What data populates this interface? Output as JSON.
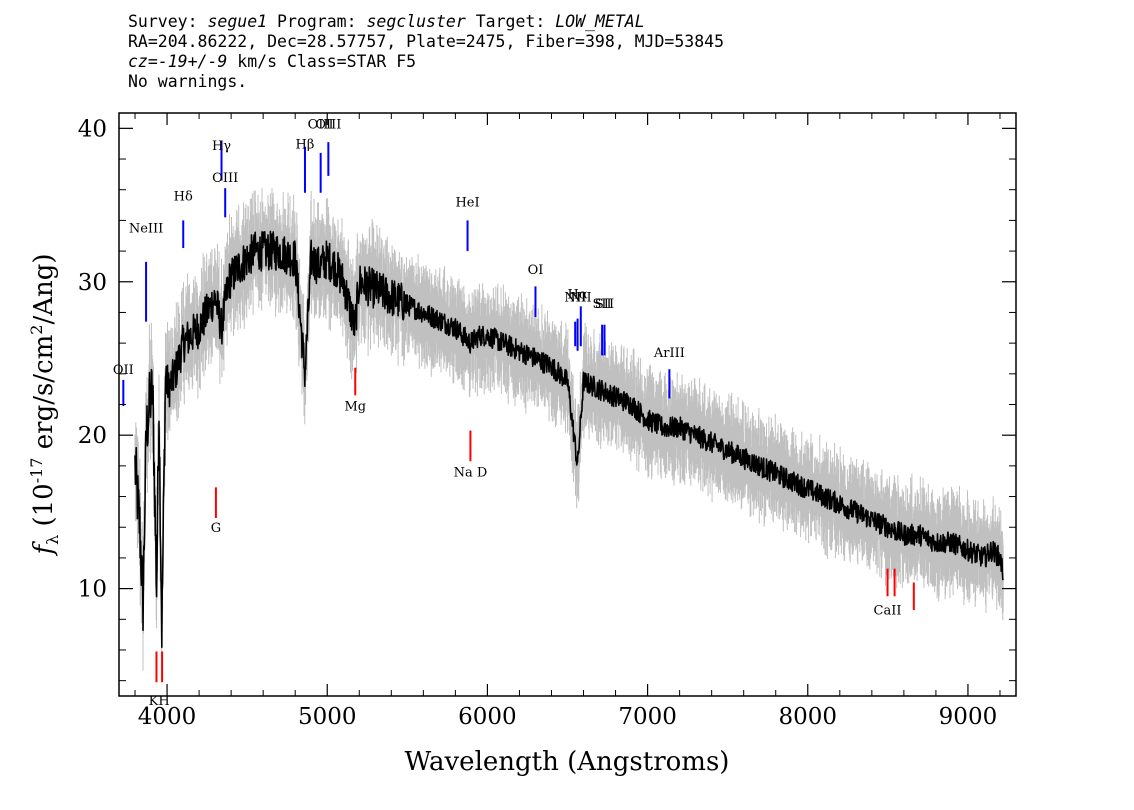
{
  "header": {
    "survey_label": "Survey:",
    "survey": "segue1",
    "program_label": "Program:",
    "program": "segcluster",
    "target_label": "Target:",
    "target": "LOW_METAL",
    "line2": "RA=204.86222, Dec=28.57757, Plate=2475, Fiber=398, MJD=53845",
    "cz_label": "cz=",
    "cz": "-19+/-9",
    "cz_unit_class": " km/s Class=STAR F5",
    "line4": "No warnings."
  },
  "chart_data": {
    "type": "line",
    "xlabel": "Wavelength (Angstroms)",
    "ylabel": "f_λ (10^-17 erg/s/cm^2/Ang)",
    "xlim": [
      3700,
      9300
    ],
    "ylim": [
      3,
      41
    ],
    "x_ticks": [
      4000,
      5000,
      6000,
      7000,
      8000,
      9000
    ],
    "y_ticks": [
      10,
      20,
      30,
      40
    ],
    "grid": false,
    "series": [
      {
        "role": "spectrum",
        "color": "#000000",
        "x": [
          3800,
          3830,
          3850,
          3870,
          3890,
          3910,
          3935,
          3950,
          3968,
          3990,
          4010,
          4050,
          4101,
          4150,
          4200,
          4250,
          4300,
          4340,
          4384,
          4450,
          4500,
          4550,
          4600,
          4700,
          4800,
          4861,
          4900,
          4950,
          5000,
          5050,
          5100,
          5172,
          5200,
          5300,
          5400,
          5500,
          5600,
          5700,
          5800,
          5893,
          5950,
          6000,
          6100,
          6200,
          6300,
          6400,
          6500,
          6563,
          6600,
          6700,
          6800,
          6900,
          7000,
          7100,
          7200,
          7300,
          7400,
          7500,
          7600,
          7700,
          7800,
          7900,
          8000,
          8100,
          8200,
          8300,
          8400,
          8500,
          8600,
          8700,
          8800,
          8900,
          9000,
          9100,
          9150,
          9200,
          9220
        ],
        "y": [
          18,
          14,
          9,
          20,
          22,
          23,
          10,
          22,
          7,
          24,
          23,
          24,
          26,
          26.5,
          27,
          28,
          29,
          27,
          30,
          31,
          31.5,
          32,
          32,
          32,
          31.5,
          24,
          31.5,
          31,
          31.5,
          31,
          30,
          27,
          30,
          29.5,
          29,
          28.5,
          28,
          27.5,
          27,
          26,
          26.5,
          26.5,
          26,
          25.5,
          25,
          24.5,
          23.5,
          18,
          23.5,
          23,
          22.5,
          22,
          21,
          20.5,
          20.5,
          20,
          19.5,
          19,
          18.5,
          18,
          17.5,
          17,
          16.5,
          16,
          15.5,
          15,
          14.5,
          14,
          13.5,
          13.5,
          13,
          13,
          12.5,
          12,
          12.5,
          12,
          11
        ]
      },
      {
        "role": "error-band",
        "color": "#c0c0c0",
        "spread": 2.2
      }
    ],
    "annotations": {
      "emission_color": "#0000ff",
      "absorption_color": "#ff0000",
      "emission": [
        {
          "label": "OII",
          "x": 3727,
          "y0": 21.9,
          "y1": 23.6,
          "label_y": 24.0
        },
        {
          "label": "NeIII",
          "x": 3869,
          "y0": 27.4,
          "y1": 31.3,
          "label_y": 33.2
        },
        {
          "label": "Hδ",
          "x": 4101,
          "y0": 32.2,
          "y1": 34.0,
          "label_y": 35.3
        },
        {
          "label": "Hγ",
          "x": 4340,
          "y0": 36.6,
          "y1": 39.2,
          "label_y": 38.6
        },
        {
          "label": "OIII",
          "x": 4363,
          "y0": 34.2,
          "y1": 36.1,
          "label_y": 36.5
        },
        {
          "label": "Hβ",
          "x": 4861,
          "y0": 35.8,
          "y1": 38.8,
          "label_y": 38.7
        },
        {
          "label": "OIII",
          "x": 4959,
          "y0": 35.8,
          "y1": 38.4,
          "label_y": 40.0
        },
        {
          "label": "OIII",
          "x": 5007,
          "y0": 36.9,
          "y1": 39.1,
          "label_y": 40.0
        },
        {
          "label": "HeI",
          "x": 5876,
          "y0": 32.0,
          "y1": 34.0,
          "label_y": 34.9
        },
        {
          "label": "OI",
          "x": 6300,
          "y0": 27.7,
          "y1": 29.7,
          "label_y": 30.5
        },
        {
          "label": "NII",
          "x": 6548,
          "y0": 25.8,
          "y1": 27.4,
          "label_y": 28.7
        },
        {
          "label": "Hα",
          "x": 6563,
          "y0": 25.5,
          "y1": 27.6,
          "label_y": 28.9
        },
        {
          "label": "NII",
          "x": 6583,
          "y0": 25.8,
          "y1": 28.4,
          "label_y": 28.7
        },
        {
          "label": "SII",
          "x": 6716,
          "y0": 25.2,
          "y1": 27.2,
          "label_y": 28.3
        },
        {
          "label": "SII",
          "x": 6731,
          "y0": 25.2,
          "y1": 27.2,
          "label_y": 28.3
        },
        {
          "label": "ArIII",
          "x": 7136,
          "y0": 22.4,
          "y1": 24.3,
          "label_y": 25.1
        }
      ],
      "absorption": [
        {
          "label": "K",
          "x": 3934,
          "y0": 3.9,
          "y1": 5.9
        },
        {
          "label": "H",
          "x": 3969,
          "y0": 3.9,
          "y1": 5.9
        },
        {
          "label": "KH",
          "x": 3951,
          "label_y": 2.4,
          "line": false
        },
        {
          "label": "G",
          "x": 4305,
          "y0": 14.6,
          "y1": 16.6,
          "label_y": 13.7
        },
        {
          "label": "Mg",
          "x": 5175,
          "y0": 22.6,
          "y1": 24.4,
          "label_y": 21.6
        },
        {
          "label": "Na D",
          "x": 5894,
          "y0": 18.3,
          "y1": 20.3,
          "label_y": 17.3
        },
        {
          "label": "CaII",
          "x": 8498,
          "y0": 9.5,
          "y1": 11.3,
          "label_y": 8.3
        },
        {
          "label": "CaII",
          "x": 8542,
          "y0": 9.5,
          "y1": 11.3
        },
        {
          "label": "CaII",
          "x": 8662,
          "y0": 8.6,
          "y1": 10.4
        }
      ]
    }
  }
}
